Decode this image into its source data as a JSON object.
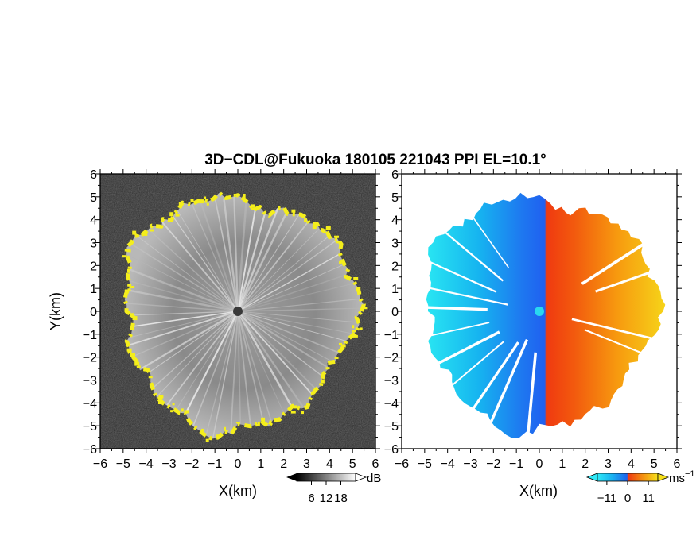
{
  "title": "3D−CDL@Fukuoka 180105 221043 PPI EL=10.1°",
  "colors": {
    "echo_ring": "#f4ee1c",
    "refl_background": "#2a2a2a",
    "velocity_negative": "#1e78f0",
    "velocity_positive": "#f04010",
    "velocity_zero_marker": "#29d8f0"
  },
  "chart_data": [
    {
      "type": "heatmap",
      "name": "reflectivity-panel",
      "xlabel": "X(km)",
      "ylabel": "Y(km)",
      "xlim": [
        -6,
        6
      ],
      "ylim": [
        -6,
        6
      ],
      "xticks": [
        "−6",
        "−5",
        "−4",
        "−3",
        "−2",
        "−1",
        "0",
        "1",
        "2",
        "3",
        "4",
        "5",
        "6"
      ],
      "yticks": [
        "−6",
        "−5",
        "−4",
        "−3",
        "−2",
        "−1",
        "0",
        "1",
        "2",
        "3",
        "4",
        "5",
        "6"
      ],
      "colorbar": {
        "unit": "dB",
        "ticks": [
          "6",
          "12",
          "18"
        ],
        "tick_values": [
          6,
          12,
          18
        ],
        "range": [
          0,
          24
        ],
        "colormap": "grayscale"
      },
      "echo_radius_km": [
        5.0,
        5.5
      ],
      "radar_location": [
        0,
        0
      ]
    },
    {
      "type": "heatmap",
      "name": "doppler-velocity-panel",
      "xlabel": "X(km)",
      "ylabel": "",
      "xlim": [
        -6,
        6
      ],
      "ylim": [
        -6,
        6
      ],
      "xticks": [
        "−6",
        "−5",
        "−4",
        "−3",
        "−2",
        "−1",
        "0",
        "1",
        "2",
        "3",
        "4",
        "5",
        "6"
      ],
      "yticks": [
        "−6",
        "−5",
        "−4",
        "−3",
        "−2",
        "−1",
        "0",
        "1",
        "2",
        "3",
        "4",
        "5",
        "6"
      ],
      "colorbar": {
        "unit": "ms",
        "unit_exponent": "−1",
        "ticks": [
          "−11",
          "0",
          "11"
        ],
        "tick_values": [
          -11,
          0,
          11
        ],
        "range": [
          -16,
          16
        ],
        "colormap": "cyan-blue-red-yellow"
      },
      "velocity_range_ms": [
        -11,
        11
      ],
      "radar_location": [
        0,
        0
      ]
    }
  ]
}
